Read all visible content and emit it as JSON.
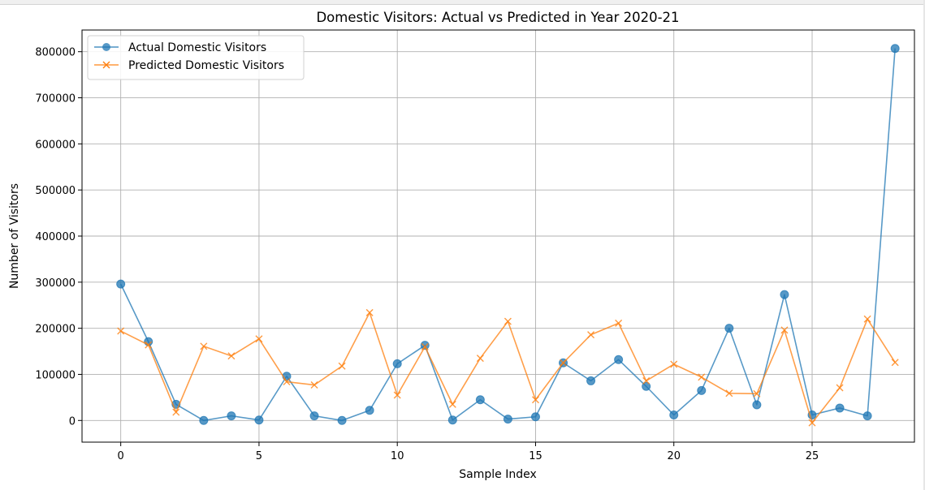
{
  "chart_data": {
    "type": "line",
    "title": "Domestic Visitors: Actual vs Predicted in Year 2020-21",
    "xlabel": "Sample Index",
    "ylabel": "Number of Visitors",
    "xlim": [
      -1.4,
      28.7
    ],
    "ylim": [
      -47000,
      847000
    ],
    "xticks": [
      0,
      5,
      10,
      15,
      20,
      25
    ],
    "yticks": [
      0,
      100000,
      200000,
      300000,
      400000,
      500000,
      600000,
      700000,
      800000
    ],
    "grid": true,
    "legend_position": "top-left",
    "x": [
      0,
      1,
      2,
      3,
      4,
      5,
      6,
      7,
      8,
      9,
      10,
      11,
      12,
      13,
      14,
      15,
      16,
      17,
      18,
      19,
      20,
      21,
      22,
      23,
      24,
      25,
      26,
      27,
      28
    ],
    "series": [
      {
        "name": "Actual Domestic Visitors",
        "color": "#1f77b4",
        "marker": "circle",
        "values": [
          296000,
          171000,
          35000,
          0,
          10000,
          1000,
          96000,
          10000,
          0,
          22000,
          123000,
          163000,
          1000,
          45000,
          3000,
          8000,
          125000,
          86000,
          132000,
          74000,
          12000,
          65000,
          200000,
          34000,
          273000,
          12000,
          27000,
          10000,
          807000
        ]
      },
      {
        "name": "Predicted Domestic Visitors",
        "color": "#ff7f0e",
        "marker": "x",
        "values": [
          194000,
          164000,
          18000,
          161000,
          140000,
          177000,
          84000,
          77000,
          118000,
          234000,
          55000,
          160000,
          35000,
          135000,
          215000,
          45000,
          125000,
          186000,
          211000,
          86000,
          122000,
          94000,
          59000,
          58000,
          196000,
          -5000,
          71000,
          220000,
          126000
        ]
      }
    ]
  }
}
